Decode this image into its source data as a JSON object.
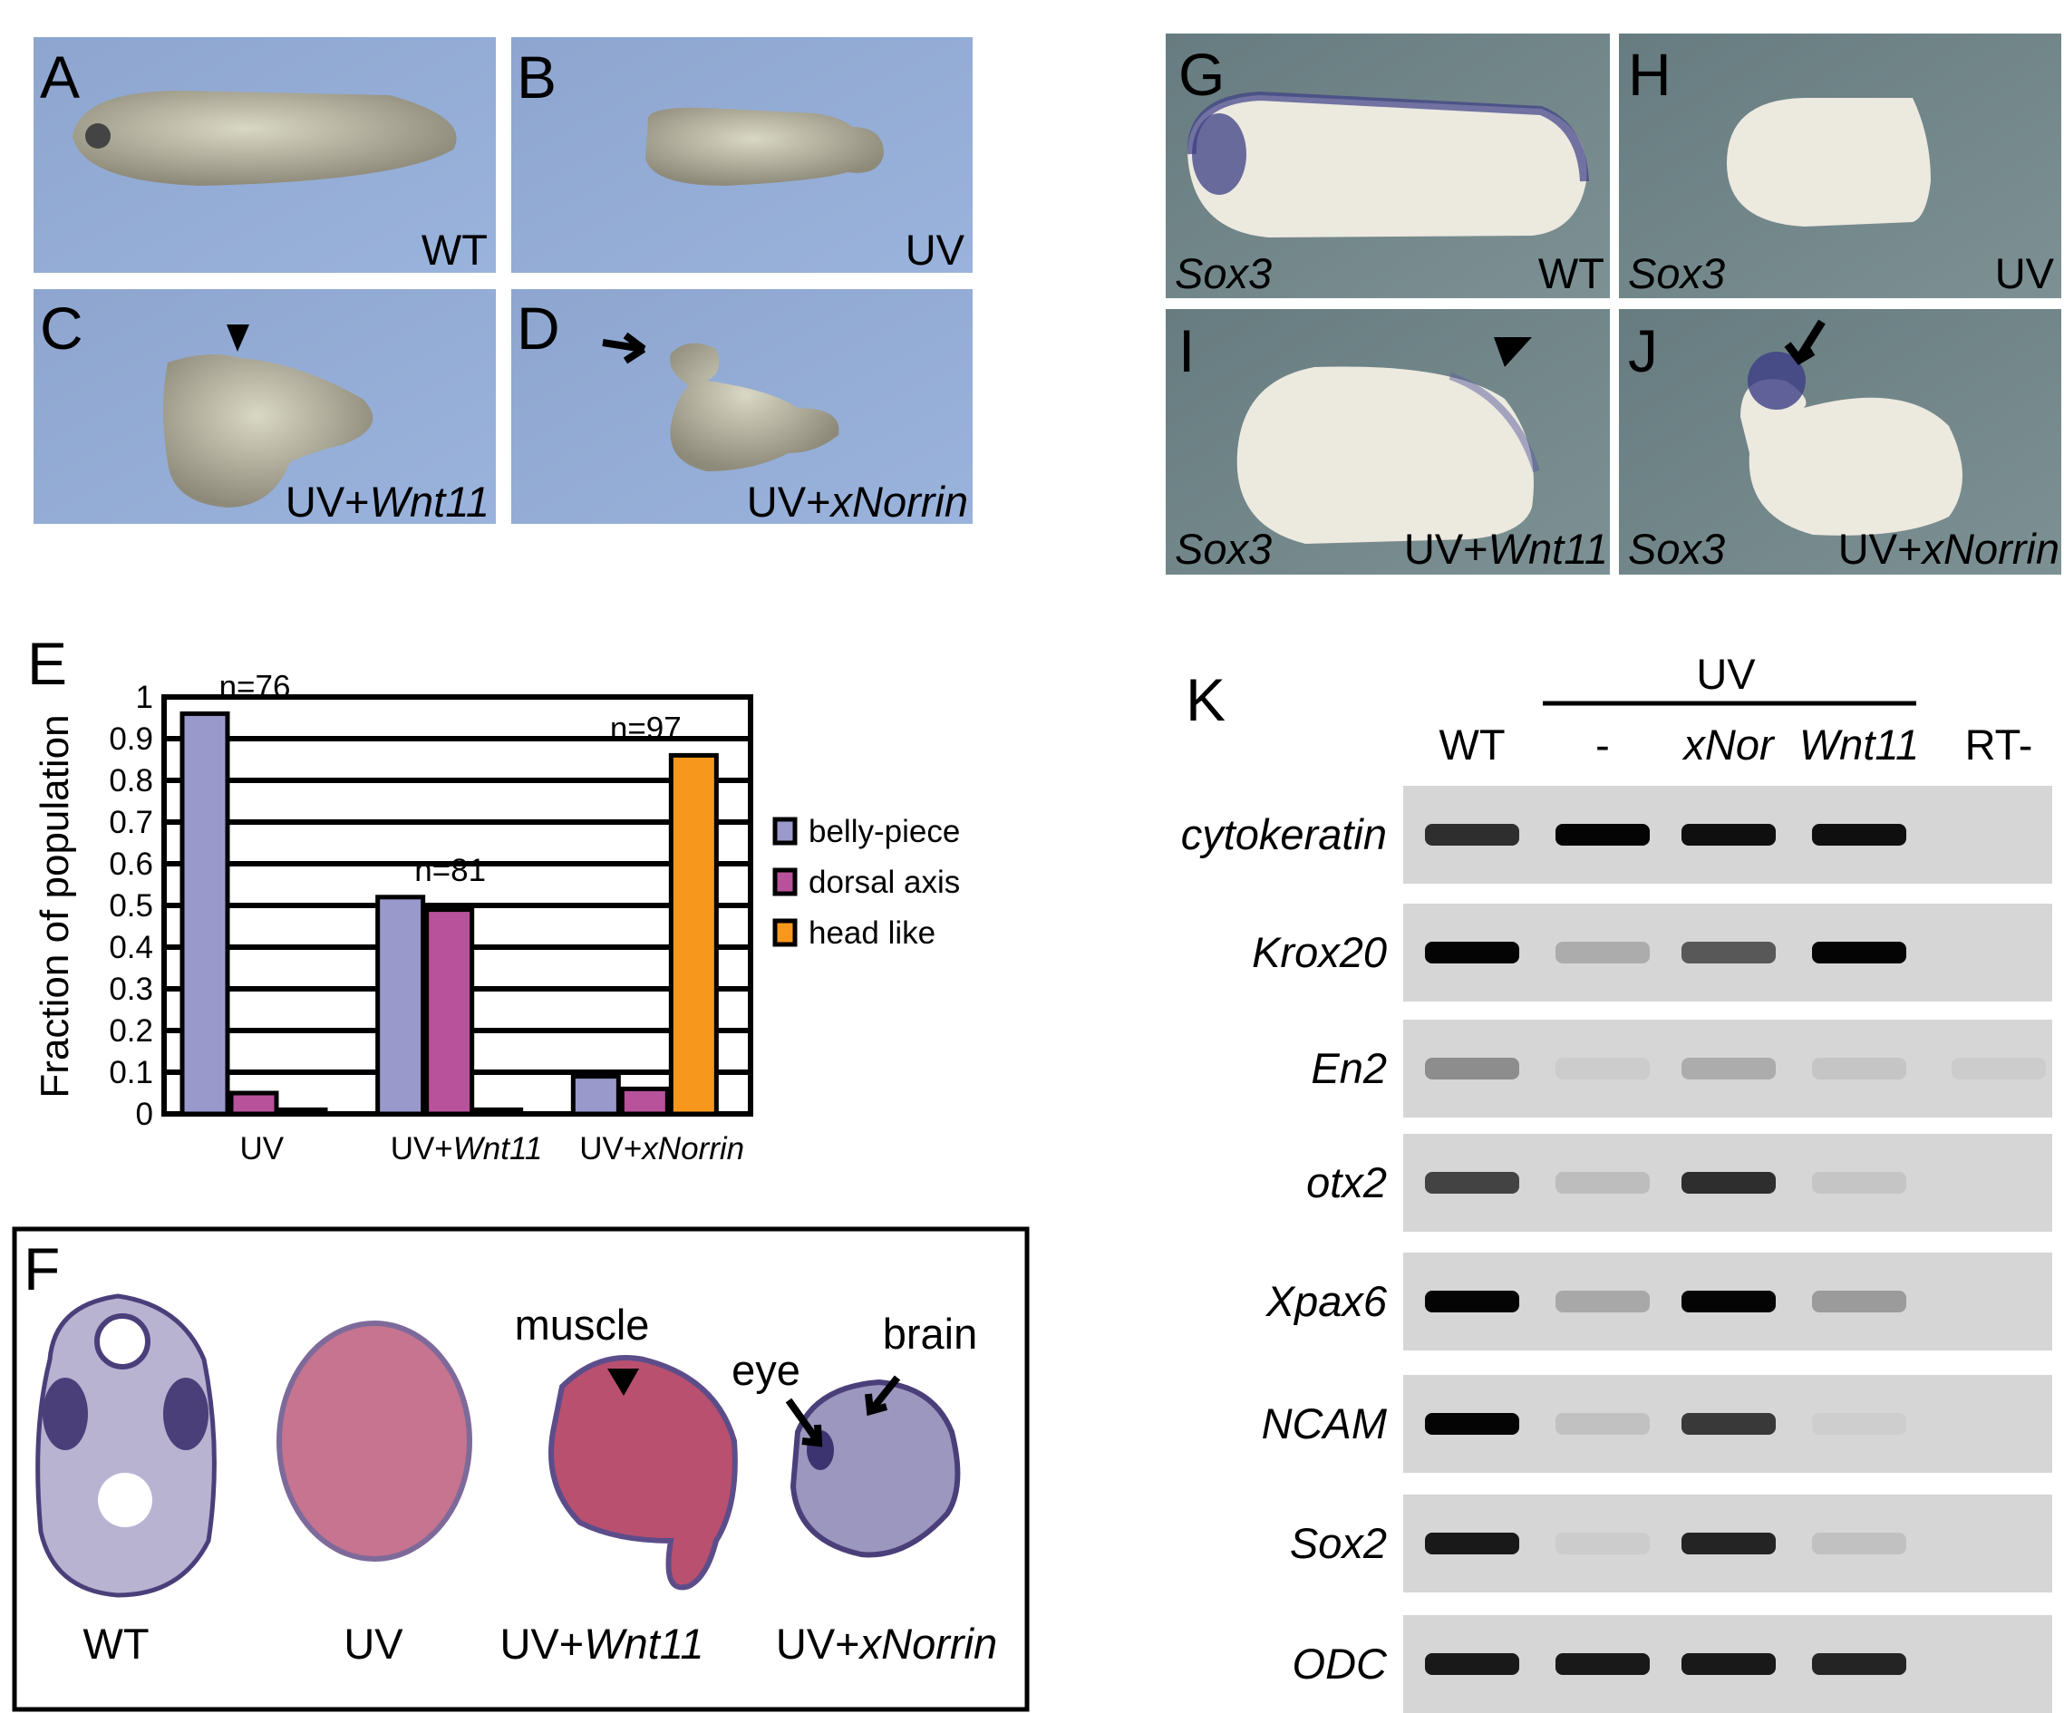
{
  "panels_top": [
    {
      "letter": "A",
      "label": "WT",
      "label_italic": ""
    },
    {
      "letter": "B",
      "label": "UV",
      "label_italic": ""
    },
    {
      "letter": "C",
      "label": "UV+",
      "label_italic": "Wnt11"
    },
    {
      "letter": "D",
      "label": "UV+",
      "label_italic": "xNorrin"
    }
  ],
  "panels_insitu": [
    {
      "letter": "G",
      "gene": "Sox3",
      "label": "WT",
      "label_italic": ""
    },
    {
      "letter": "H",
      "gene": "Sox3",
      "label": "UV",
      "label_italic": ""
    },
    {
      "letter": "I",
      "gene": "Sox3",
      "label": "UV+",
      "label_italic": "Wnt11"
    },
    {
      "letter": "J",
      "gene": "Sox3",
      "label": "UV+",
      "label_italic": "xNorrin"
    }
  ],
  "colors": {
    "photo_bg": "#8fa9d4",
    "insitu_bg": "#6f8489",
    "belly": "#9999cc",
    "dorsal": "#b8529a",
    "head": "#f7981d",
    "gel": "#d6d6d6"
  },
  "chart_data": {
    "type": "bar",
    "panel_letter": "E",
    "ylabel": "Fraction of population",
    "ylim": [
      0,
      1
    ],
    "yticks": [
      "0",
      "0.1",
      "0.2",
      "0.3",
      "0.4",
      "0.5",
      "0.6",
      "0.7",
      "0.8",
      "0.9",
      "1"
    ],
    "grid": true,
    "legend_placement": "right",
    "categories": [
      {
        "label": "UV",
        "label_italic": "",
        "n": "n=76"
      },
      {
        "label": "UV+",
        "label_italic": "Wnt11",
        "n": "n=81"
      },
      {
        "label": "UV+",
        "label_italic": "xNorrin",
        "n": "n=97"
      }
    ],
    "series": [
      {
        "name": "belly-piece",
        "color": "#9999cc",
        "values": [
          0.96,
          0.52,
          0.09
        ]
      },
      {
        "name": "dorsal axis",
        "color": "#b8529a",
        "values": [
          0.05,
          0.49,
          0.06
        ]
      },
      {
        "name": "head like",
        "color": "#f7981d",
        "values": [
          0.01,
          0.01,
          0.86
        ]
      }
    ]
  },
  "panel_f": {
    "letter": "F",
    "sections": [
      {
        "label": "WT",
        "label_italic": ""
      },
      {
        "label": "UV",
        "label_italic": ""
      },
      {
        "label": "UV+",
        "label_italic": "Wnt11"
      },
      {
        "label": "UV+",
        "label_italic": "xNorrin"
      }
    ],
    "annotations": {
      "muscle": "muscle",
      "eye": "eye",
      "brain": "brain"
    }
  },
  "panel_k": {
    "letter": "K",
    "group_label": "UV",
    "lanes": [
      "WT",
      "-",
      "xNor",
      "Wnt11",
      "RT-"
    ],
    "lanes_italic": [
      false,
      false,
      true,
      true,
      false
    ],
    "genes": [
      {
        "name": "cytokeratin",
        "band_intensity": [
          0.8,
          1,
          0.95,
          0.95,
          0
        ]
      },
      {
        "name": "Krox20",
        "band_intensity": [
          1,
          0.2,
          0.6,
          1,
          0
        ]
      },
      {
        "name": "En2",
        "band_intensity": [
          0.35,
          0.05,
          0.2,
          0.08,
          0.05
        ]
      },
      {
        "name": "otx2",
        "band_intensity": [
          0.7,
          0.12,
          0.8,
          0.08,
          0
        ]
      },
      {
        "name": "Xpax6",
        "band_intensity": [
          1,
          0.22,
          1,
          0.28,
          0
        ]
      },
      {
        "name": "NCAM",
        "band_intensity": [
          1,
          0.1,
          0.75,
          0.04,
          0
        ]
      },
      {
        "name": "Sox2",
        "band_intensity": [
          0.9,
          0.05,
          0.85,
          0.1,
          0
        ]
      },
      {
        "name": "ODC",
        "band_intensity": [
          0.9,
          0.9,
          0.9,
          0.85,
          0
        ]
      }
    ]
  }
}
